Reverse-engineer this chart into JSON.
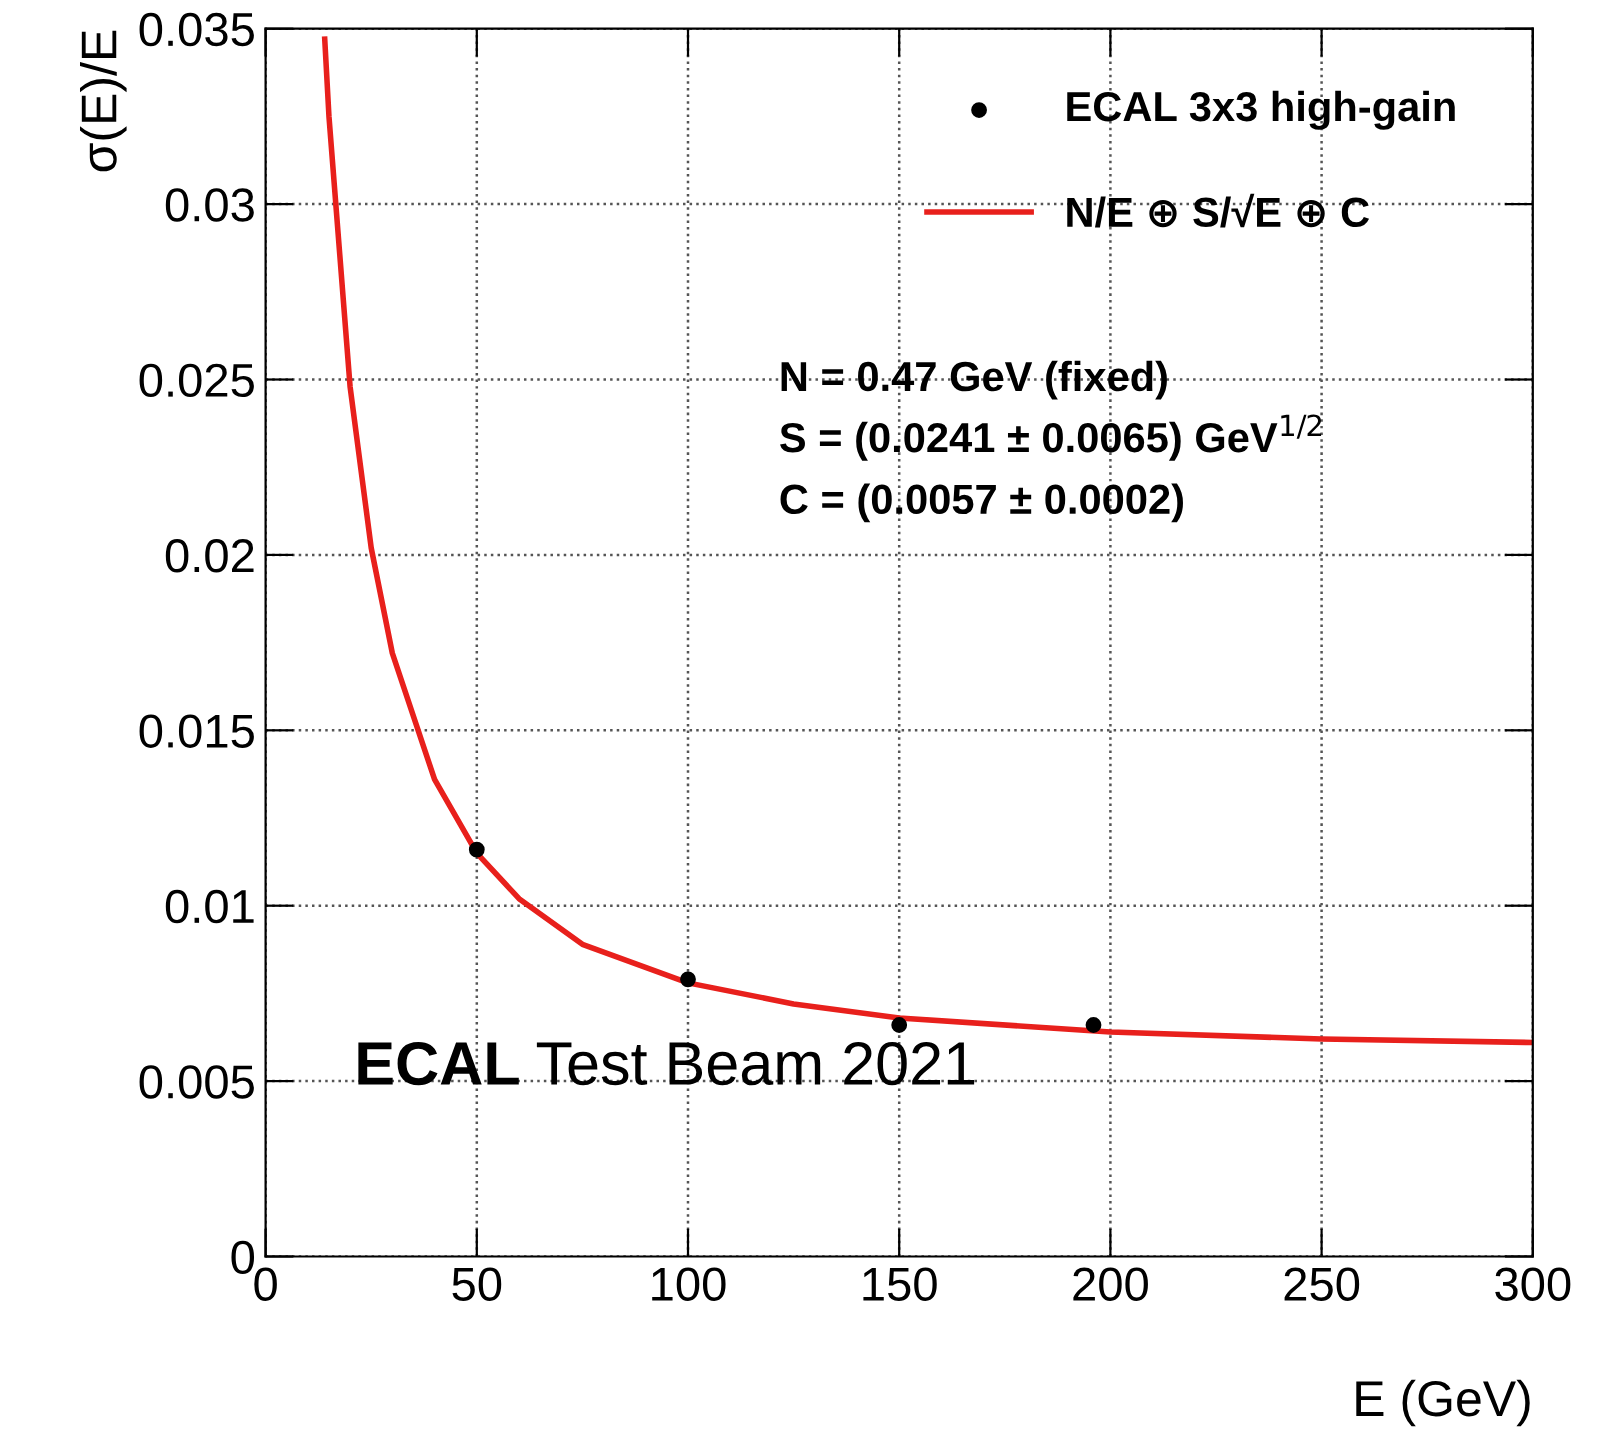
{
  "chart_data": {
    "type": "scatter",
    "xlabel": "E (GeV)",
    "ylabel": "σ(E)/E",
    "xlim": [
      0,
      300
    ],
    "ylim": [
      0,
      0.035
    ],
    "xticks": [
      0,
      50,
      100,
      150,
      200,
      250,
      300
    ],
    "yticks": [
      0,
      0.005,
      0.01,
      0.015,
      0.02,
      0.025,
      0.03,
      0.035
    ],
    "grid": true,
    "legend": "top right",
    "marker": "circle",
    "series": [
      {
        "name": "ECAL 3x3 high-gain",
        "color": "#000000",
        "x": [
          50,
          100,
          150,
          196
        ],
        "values": [
          0.0116,
          0.0079,
          0.0066,
          0.0066
        ]
      },
      {
        "name": "N/E ⊕ S/√E ⊕ C",
        "type": "line",
        "color": "#e8201c",
        "marker": "none",
        "x": [
          14,
          15,
          20,
          25,
          30,
          40,
          50,
          60,
          75,
          100,
          125,
          150,
          200,
          250,
          300
        ],
        "values": [
          0.0347,
          0.0325,
          0.0248,
          0.0202,
          0.0172,
          0.0136,
          0.0115,
          0.0102,
          0.0089,
          0.0078,
          0.0072,
          0.0068,
          0.0064,
          0.0062,
          0.0061
        ]
      }
    ],
    "annotations": [
      "N = 0.47 GeV (fixed)",
      "S = (0.0241 ± 0.0065) GeV$^{1/2}$",
      "C = (0.0057 ± 0.0002)",
      "ECAL Test Beam 2021"
    ]
  }
}
